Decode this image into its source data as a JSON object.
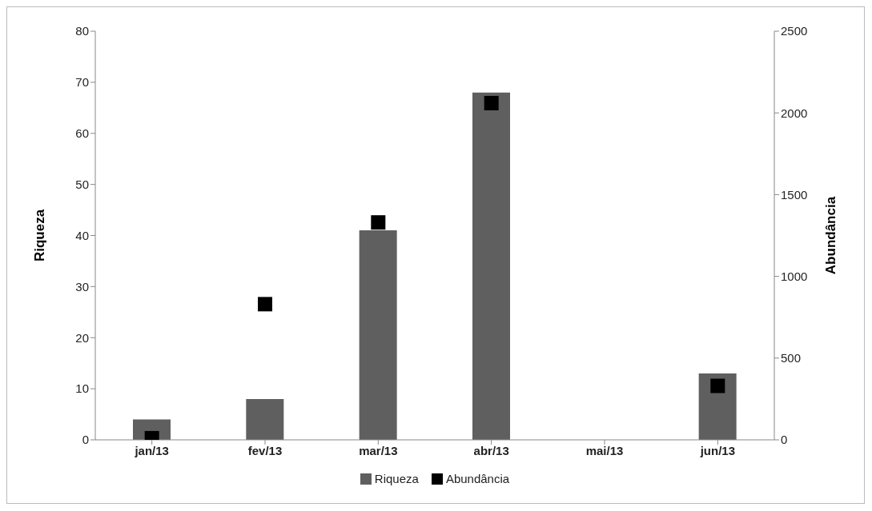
{
  "chart_data": {
    "type": "bar",
    "categories": [
      "jan/13",
      "fev/13",
      "mar/13",
      "abr/13",
      "mai/13",
      "jun/13"
    ],
    "series": [
      {
        "name": "Riqueza",
        "color": "#5f5f5f",
        "values": [
          4,
          8,
          41,
          68,
          null,
          13
        ]
      },
      {
        "name": "Abundância",
        "type": "scatter",
        "axis": "y2",
        "color": "#000000",
        "marker": "square",
        "values": [
          10,
          830,
          1330,
          2060,
          null,
          330
        ]
      }
    ],
    "ylabel": "Riqueza",
    "y2label": "Abundância",
    "ylim": [
      0,
      80
    ],
    "yticks": [
      0,
      10,
      20,
      30,
      40,
      50,
      60,
      70,
      80
    ],
    "y2lim": [
      0,
      2500
    ],
    "y2ticks": [
      0,
      500,
      1000,
      1500,
      2000,
      2500
    ],
    "grid": false,
    "legend": "bottom"
  }
}
